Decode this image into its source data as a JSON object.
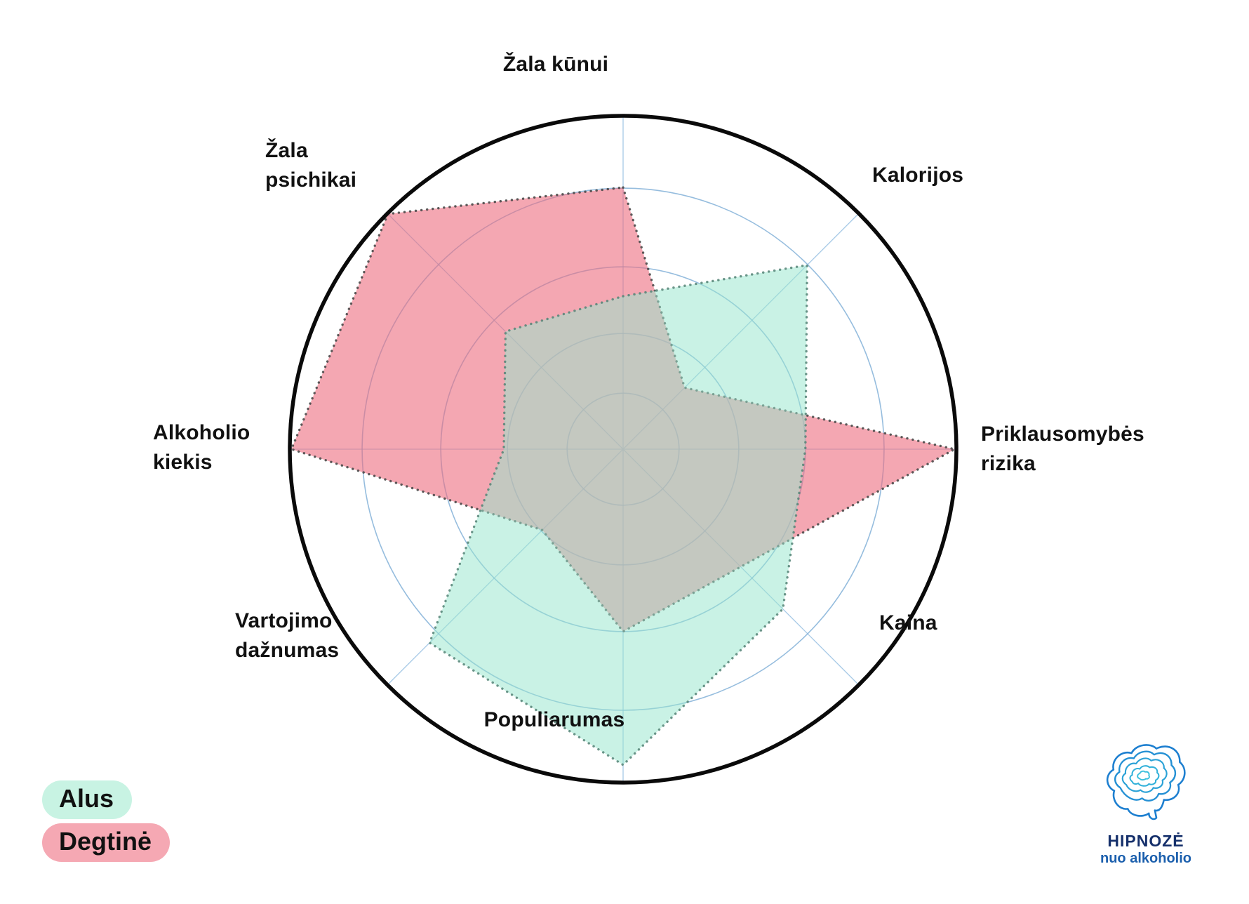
{
  "chart_data": {
    "type": "radar",
    "title": "",
    "axes": [
      "Žala kūnui",
      "Kalorijos",
      "Priklausomybės rizika",
      "Kaina",
      "Populiarumas",
      "Vartojimo dažnumas",
      "Alkoholio kiekis",
      "Žala psichikai"
    ],
    "axis_lines": [
      [
        "Žala kūnui"
      ],
      [
        "Kalorijos"
      ],
      [
        "Priklausomybės",
        "rizika"
      ],
      [
        "Kaina"
      ],
      [
        "Populiarumas"
      ],
      [
        "Vartojimo",
        "dažnumas"
      ],
      [
        "Alkoholio",
        "kiekis"
      ],
      [
        "Žala",
        "psichikai"
      ]
    ],
    "scale": {
      "min": 0,
      "max": 5,
      "ring_values": [
        1,
        2,
        3,
        4
      ],
      "ring_fractions": [
        0.168,
        0.347,
        0.547,
        0.783
      ]
    },
    "grid": true,
    "legend_position": "bottom-left",
    "series": [
      {
        "name": "Alus",
        "values": [
          2.5,
          4,
          3,
          3.5,
          4.8,
          4.2,
          2,
          2.5
        ],
        "fractions": [
          0.459,
          0.781,
          0.547,
          0.678,
          0.947,
          0.821,
          0.358,
          0.499
        ],
        "fill": "rgba(152,230,205,0.52)",
        "stroke": "rgba(84,130,118,0.85)",
        "draw_order": 2
      },
      {
        "name": "Degtinė",
        "values": [
          4,
          1.5,
          5,
          2.5,
          3,
          2,
          5,
          5
        ],
        "fractions": [
          0.785,
          0.261,
          0.995,
          0.499,
          0.547,
          0.343,
          0.995,
          0.998
        ],
        "fill": "rgba(237,108,127,0.60)",
        "stroke": "rgba(70,70,70,0.88)",
        "draw_order": 1
      }
    ],
    "colors": {
      "outer_circle": "#0a0a0a",
      "ring": "#84b2d8",
      "axis_line": "#a6c9e6"
    }
  },
  "legend": {
    "items": [
      {
        "label": "Alus",
        "bg": "#c8f3e3"
      },
      {
        "label": "Degtinė",
        "bg": "#f5a8b3"
      }
    ]
  },
  "logo": {
    "title": "HIPNOZĖ",
    "subtitle": "nuo alkoholio"
  }
}
